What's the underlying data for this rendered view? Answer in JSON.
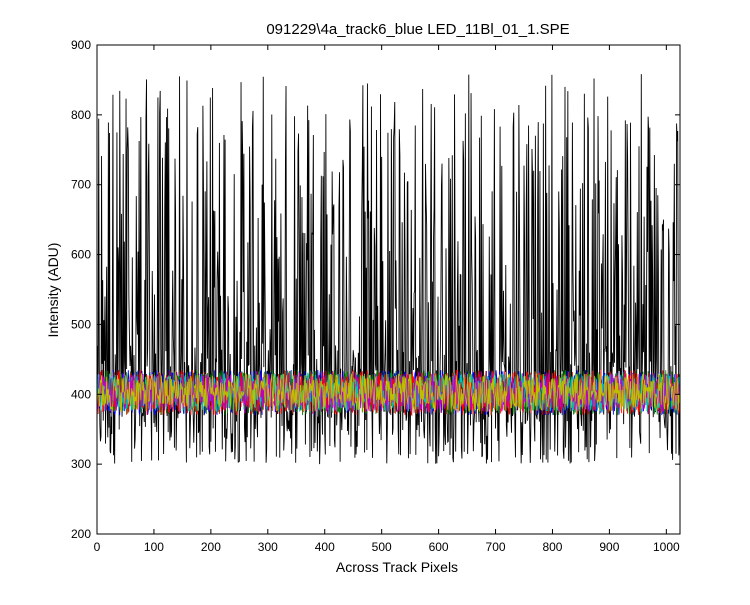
{
  "chart_data": {
    "type": "line",
    "title": "091229\\4a_track6_blue LED_11Bl_01_1.SPE",
    "xlabel": "Across Track Pixels",
    "ylabel": "Intensity (ADU)",
    "xlim": [
      0,
      1024
    ],
    "ylim": [
      200,
      900
    ],
    "xticks": [
      0,
      100,
      200,
      300,
      400,
      500,
      600,
      700,
      800,
      900,
      1000
    ],
    "yticks": [
      200,
      300,
      400,
      500,
      600,
      700,
      800,
      900
    ],
    "grid": false,
    "legend": "none",
    "series": [
      {
        "color": "#000000",
        "min": 265,
        "max": 866,
        "baseline": 400,
        "description_values": "noisy spikes between ~300 and ~860 ADU over pixels 0-1024"
      },
      {
        "color": "#0000ff",
        "min": 370,
        "max": 435,
        "baseline": 405
      },
      {
        "color": "#008000",
        "min": 370,
        "max": 435,
        "baseline": 405
      },
      {
        "color": "#ff0000",
        "min": 370,
        "max": 435,
        "baseline": 405
      },
      {
        "color": "#00bfbf",
        "min": 375,
        "max": 430,
        "baseline": 405
      },
      {
        "color": "#bf00bf",
        "min": 375,
        "max": 430,
        "baseline": 405
      },
      {
        "color": "#bfbf00",
        "min": 375,
        "max": 430,
        "baseline": 405
      }
    ]
  }
}
